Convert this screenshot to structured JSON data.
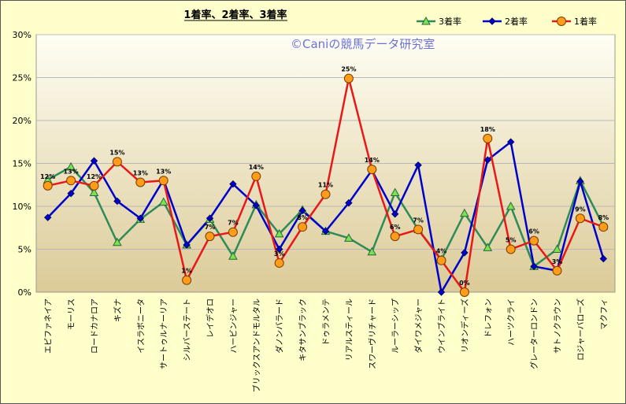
{
  "chart_data": {
    "type": "line",
    "title": "1着率、2着率、3着率",
    "watermark": "©Caniの競馬データ研究室",
    "ylim": [
      0,
      30
    ],
    "yticks": [
      "0%",
      "5%",
      "10%",
      "15%",
      "20%",
      "25%",
      "30%"
    ],
    "legend_position": "top-right",
    "grid": true,
    "categories": [
      "エピファネイア",
      "モーリス",
      "ロードカナロア",
      "キズナ",
      "イスラボニータ",
      "サートゥルナーリア",
      "シルバーステート",
      "レイデオロ",
      "ハービンジャー",
      "ブリックスアンドモルタル",
      "ダノンバラード",
      "キタサンブラック",
      "ドゥラメンテ",
      "リアルスティール",
      "スワーヴリチャード",
      "ルーラーシップ",
      "ダイワメジャー",
      "ウインブライト",
      "リオンディーズ",
      "ドレフォン",
      "ハーツクライ",
      "グレーターロンドン",
      "サトノクラウン",
      "ロジャーバローズ",
      "マクフィ"
    ],
    "series": [
      {
        "name": "3着率",
        "color": "#2e8b57",
        "marker": "triangle",
        "values": [
          13.1,
          14.6,
          11.6,
          5.8,
          8.5,
          10.5,
          5.5,
          8.5,
          4.2,
          10.2,
          6.8,
          9.6,
          7.1,
          6.3,
          4.7,
          11.6,
          7.3,
          3.8,
          9.2,
          5.2,
          10.0,
          3.0,
          5.0,
          13.0,
          7.7
        ]
      },
      {
        "name": "2着率",
        "color": "#0000cc",
        "marker": "diamond",
        "values": [
          8.7,
          11.5,
          15.3,
          10.6,
          8.6,
          13.1,
          5.5,
          8.6,
          12.6,
          10.1,
          5.0,
          9.5,
          7.1,
          10.4,
          14.2,
          9.1,
          14.8,
          0.0,
          4.6,
          15.4,
          17.5,
          3.0,
          2.5,
          12.9,
          3.9
        ]
      },
      {
        "name": "1着率",
        "color": "#e81818",
        "marker": "circle",
        "values": [
          12.4,
          13.0,
          12.4,
          15.2,
          12.8,
          13.0,
          1.4,
          6.5,
          7.0,
          13.5,
          3.4,
          7.6,
          11.4,
          24.9,
          14.3,
          6.5,
          7.3,
          3.7,
          0.0,
          17.9,
          5.0,
          6.0,
          2.5,
          8.6,
          7.6
        ]
      }
    ],
    "data_labels_1st": [
      "12%",
      "13%",
      "12%",
      "15%",
      "13%",
      "13%",
      "1%",
      "7%",
      "7%",
      "14%",
      "3%",
      "8%",
      "11%",
      "25%",
      "14%",
      "6%",
      "7%",
      "4%",
      "0%",
      "18%",
      "5%",
      "6%",
      "3%",
      "9%",
      "8%"
    ]
  }
}
